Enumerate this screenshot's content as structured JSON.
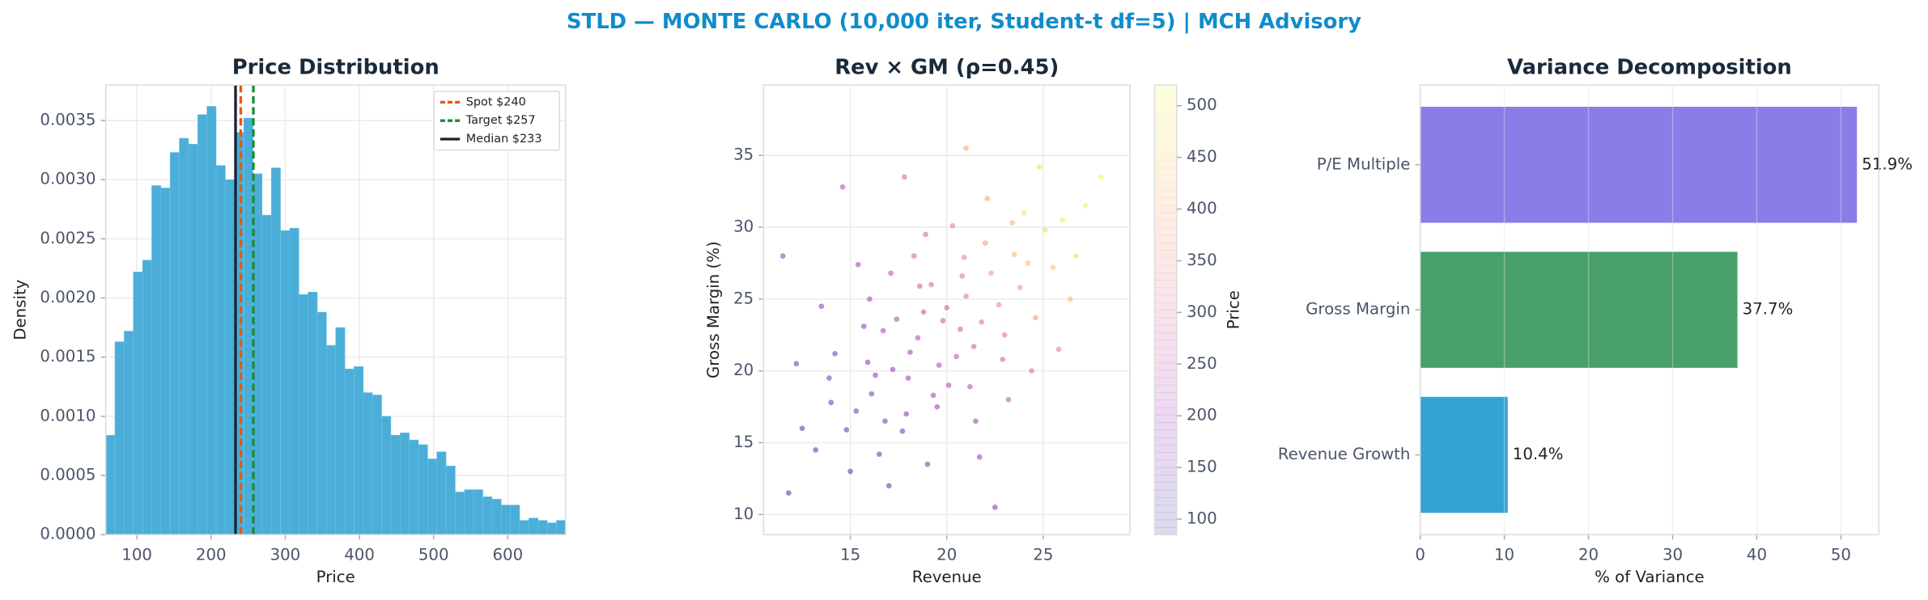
{
  "title": "STLD — MONTE CARLO (10,000 iter, Student-t df=5) | MCH Advisory",
  "chart_data": [
    {
      "type": "histogram",
      "title": "Price Distribution",
      "xlabel": "Price",
      "ylabel": "Density",
      "bins": [
        58,
        70.4,
        82.8,
        95.2,
        107.6,
        120,
        132.4,
        144.8,
        157.2,
        169.6,
        182,
        194.4,
        206.8,
        219.2,
        231.6,
        244,
        256.4,
        268.8,
        281.2,
        293.6,
        306,
        318.4,
        330.8,
        343.2,
        355.6,
        368,
        380.4,
        392.8,
        405.2,
        417.6,
        430,
        442.4,
        454.8,
        467.2,
        479.6,
        492,
        504.4,
        516.8,
        529.2,
        541.6,
        554,
        566.4,
        578.8,
        591.2,
        603.6,
        616,
        628.4,
        640.8,
        653.2,
        665.6,
        678
      ],
      "values": [
        0.00084,
        0.00163,
        0.00172,
        0.00222,
        0.00232,
        0.00295,
        0.00293,
        0.00323,
        0.00335,
        0.0033,
        0.00355,
        0.00362,
        0.00312,
        0.003,
        0.0034,
        0.00352,
        0.00305,
        0.0027,
        0.0031,
        0.00257,
        0.00259,
        0.00203,
        0.00205,
        0.00188,
        0.0016,
        0.00175,
        0.0014,
        0.00142,
        0.0012,
        0.00118,
        0.001,
        0.00084,
        0.00086,
        0.0008,
        0.00076,
        0.00064,
        0.0007,
        0.00058,
        0.00036,
        0.00038,
        0.00038,
        0.00032,
        0.0003,
        0.00025,
        0.00025,
        0.00012,
        0.00014,
        0.00012,
        0.0001,
        0.00012
      ],
      "color": "#4aaed9",
      "xlim": [
        58,
        678
      ],
      "ylim": [
        0,
        0.0038
      ],
      "xticks": [
        100,
        200,
        300,
        400,
        500,
        600
      ],
      "yticks": [
        {
          "value": 0,
          "label": "0.0000"
        },
        {
          "value": 0.0005,
          "label": "0.0005"
        },
        {
          "value": 0.001,
          "label": "0.0010"
        },
        {
          "value": 0.0015,
          "label": "0.0015"
        },
        {
          "value": 0.002,
          "label": "0.0020"
        },
        {
          "value": 0.0025,
          "label": "0.0025"
        },
        {
          "value": 0.003,
          "label": "0.0030"
        },
        {
          "value": 0.0035,
          "label": "0.0035"
        }
      ],
      "grid": true,
      "legend": "upper right",
      "vlines": [
        {
          "name": "Spot $240",
          "value": 240,
          "color": "#e8590c",
          "style": "dashed"
        },
        {
          "name": "Target $257",
          "value": 257,
          "color": "#1e8a3e",
          "style": "dashed"
        },
        {
          "name": "Median $233",
          "value": 233,
          "color": "#1a2230",
          "style": "solid"
        }
      ]
    },
    {
      "type": "scatter",
      "title": "Rev × GM (ρ=0.45)",
      "xlabel": "Revenue",
      "ylabel": "Gross Margin (%)",
      "x": [
        17.2,
        18.5,
        19.8,
        21.0,
        22.3,
        16.1,
        15.3,
        20.5,
        18.0,
        23.5,
        24.2,
        14.8,
        16.7,
        19.2,
        21.8,
        17.9,
        20.1,
        22.7,
        25.1,
        13.9,
        15.9,
        18.8,
        20.9,
        23.0,
        16.5,
        17.7,
        19.5,
        21.2,
        24.0,
        26.0,
        12.5,
        14.2,
        16.0,
        18.3,
        20.3,
        22.1,
        23.8,
        25.5,
        27.2,
        19.0,
        17.0,
        15.0,
        13.2,
        21.5,
        18.1,
        19.6,
        20.7,
        17.4,
        16.3,
        22.9,
        24.6,
        26.4,
        11.8,
        11.5,
        14.6,
        17.8,
        21.0,
        24.8,
        28.0,
        22.5,
        25.8,
        23.2,
        15.7,
        18.6,
        20.0,
        21.4,
        19.3,
        16.8,
        14.0,
        20.8,
        22.0,
        23.4,
        18.9,
        17.1,
        15.4,
        13.5,
        24.4,
        26.7,
        12.2,
        21.7
      ],
      "y": [
        20.1,
        22.3,
        23.5,
        25.2,
        26.8,
        18.4,
        17.2,
        21.0,
        19.5,
        28.1,
        27.5,
        15.9,
        22.8,
        26.0,
        23.4,
        17.0,
        19.0,
        24.6,
        29.8,
        19.5,
        20.6,
        24.1,
        27.9,
        22.5,
        14.2,
        15.8,
        17.5,
        18.9,
        31.0,
        30.5,
        16.0,
        21.2,
        25.0,
        28.0,
        30.1,
        32.0,
        25.8,
        27.2,
        31.5,
        13.5,
        12.0,
        13.0,
        14.5,
        16.5,
        21.3,
        20.4,
        22.9,
        23.6,
        19.7,
        20.8,
        23.7,
        25.0,
        11.5,
        28.0,
        32.8,
        33.5,
        35.5,
        34.2,
        33.5,
        10.5,
        21.5,
        18.0,
        23.1,
        25.9,
        24.4,
        21.7,
        18.3,
        16.5,
        17.8,
        26.6,
        28.9,
        30.3,
        29.5,
        26.8,
        27.4,
        24.5,
        20.0,
        28.0,
        20.5,
        14.0
      ],
      "c": [
        190,
        230,
        265,
        320,
        370,
        160,
        140,
        245,
        200,
        430,
        440,
        125,
        210,
        280,
        300,
        170,
        220,
        350,
        480,
        150,
        175,
        250,
        340,
        310,
        120,
        140,
        190,
        235,
        490,
        500,
        105,
        150,
        215,
        270,
        330,
        400,
        380,
        450,
        510,
        150,
        115,
        110,
        100,
        200,
        215,
        225,
        265,
        220,
        175,
        275,
        375,
        430,
        95,
        180,
        230,
        290,
        400,
        470,
        515,
        160,
        330,
        250,
        190,
        255,
        270,
        265,
        200,
        150,
        130,
        310,
        370,
        420,
        285,
        240,
        205,
        160,
        300,
        470,
        120,
        180
      ],
      "cmap": "plasma",
      "colorbar_label": "Price",
      "clim": [
        85,
        520
      ],
      "cticks": [
        100,
        150,
        200,
        250,
        300,
        350,
        400,
        450,
        500
      ],
      "xlim": [
        10.5,
        29.5
      ],
      "ylim": [
        8.6,
        39.9
      ],
      "xticks": [
        15,
        20,
        25
      ],
      "yticks": [
        10,
        15,
        20,
        25,
        30,
        35
      ],
      "grid": true
    },
    {
      "type": "barh",
      "title": "Variance Decomposition",
      "xlabel": "% of Variance",
      "categories": [
        "Revenue Growth",
        "Gross Margin",
        "P/E Multiple"
      ],
      "values": [
        10.4,
        37.7,
        51.9
      ],
      "value_labels": [
        "10.4%",
        "37.7%",
        "51.9%"
      ],
      "colors": [
        "#33a3d4",
        "#48a06a",
        "#8a7de8"
      ],
      "xlim": [
        0,
        54.5
      ],
      "xticks": [
        0,
        10,
        20,
        30,
        40,
        50
      ],
      "grid": true
    }
  ]
}
